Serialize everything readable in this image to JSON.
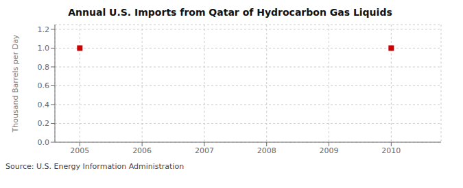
{
  "chart_data": {
    "type": "scatter",
    "title": "Annual U.S. Imports from Qatar of Hydrocarbon Gas Liquids",
    "ylabel": "Thousand Barrels per Day",
    "annotations": [
      "Source: U.S. Energy Information Administration"
    ],
    "x": [
      2005,
      2010
    ],
    "values": [
      1.0,
      1.0
    ],
    "color": "#cc0000",
    "marker": "square",
    "xlim": [
      2004.6,
      2010.8
    ],
    "xticks": [
      2005,
      2006,
      2007,
      2008,
      2009,
      2010
    ],
    "ylim": [
      0.0,
      1.25
    ],
    "yticks": [
      {
        "value": 0,
        "label": "0.0"
      },
      0.2,
      0.4,
      0.6,
      0.8,
      {
        "value": 1,
        "label": "1.0"
      },
      1.2
    ],
    "grid": true
  }
}
